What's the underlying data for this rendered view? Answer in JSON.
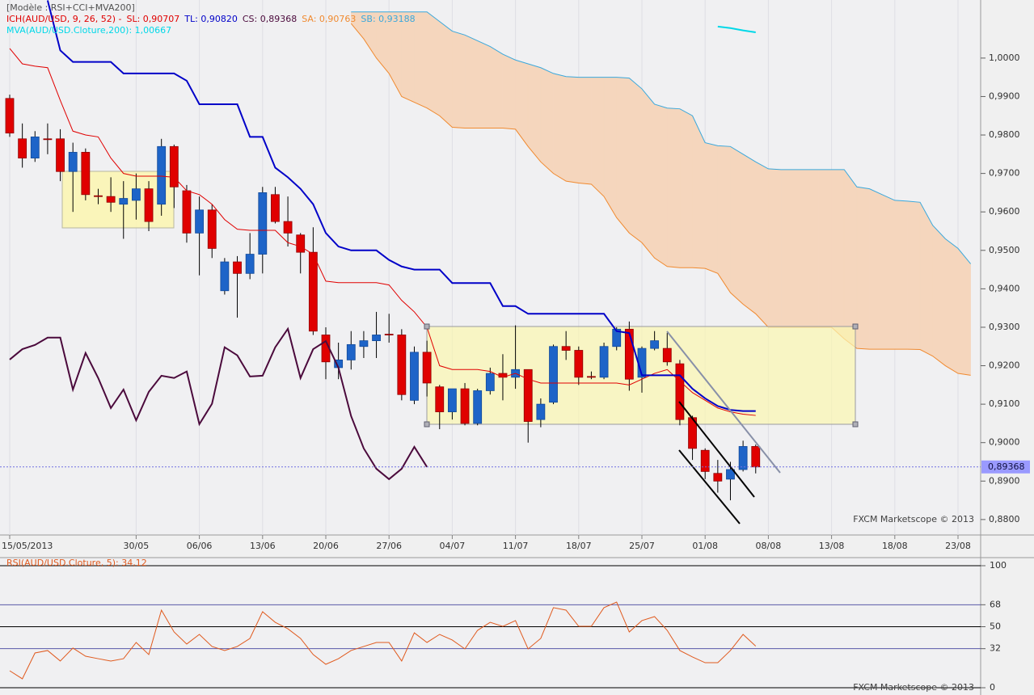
{
  "chart_data": [
    {
      "type": "candlestick",
      "title": "[Modèle : RSI+CCI+MVA200]",
      "subtitle": "ICH(AUD/USD, 9, 26, 52) -",
      "watermark": "FXCM Marketscope © 2013",
      "categories": [
        "15/05/2013",
        null,
        null,
        null,
        null,
        null,
        null,
        null,
        null,
        null,
        "30/05",
        null,
        null,
        null,
        null,
        "06/06",
        null,
        null,
        null,
        null,
        "13/06",
        null,
        null,
        null,
        null,
        "20/06",
        null,
        null,
        null,
        null,
        "27/06",
        null,
        null,
        null,
        null,
        "04/07",
        null,
        null,
        null,
        null,
        "11/07",
        null,
        null,
        null,
        null,
        "18/07",
        null,
        null,
        null,
        null,
        "25/07",
        null,
        null,
        null,
        null,
        "01/08",
        null,
        null,
        null,
        null,
        "08/08",
        null,
        null,
        null,
        null,
        "13/08",
        null,
        null,
        null,
        null,
        "18/08",
        null,
        null,
        null,
        null,
        "23/08",
        null
      ],
      "open": [
        0.9895,
        0.979,
        0.974,
        0.979,
        0.979,
        0.9705,
        0.9755,
        0.9642,
        0.964,
        0.962,
        0.963,
        0.966,
        0.962,
        0.977,
        0.9655,
        0.9545,
        0.9605,
        0.9395,
        0.947,
        0.944,
        0.949,
        0.9645,
        0.9575,
        0.954,
        0.9495,
        0.928,
        0.9195,
        0.9215,
        0.925,
        0.9265,
        0.9282,
        0.928,
        0.911,
        0.9235,
        0.9145,
        0.908,
        0.914,
        0.905,
        0.9135,
        0.918,
        0.917,
        0.919,
        0.906,
        0.9105,
        0.925,
        0.924,
        0.9172,
        0.917,
        0.925,
        0.9295,
        0.917,
        0.9245,
        0.9245,
        0.9205,
        0.9065,
        0.898,
        0.892,
        0.8905,
        0.893,
        0.899,
        null,
        null,
        null,
        null,
        null,
        null,
        null,
        null,
        null,
        null,
        null,
        null,
        null,
        null,
        null,
        null,
        null
      ],
      "high": [
        0.9905,
        0.983,
        0.981,
        0.983,
        0.9815,
        0.978,
        0.9765,
        0.966,
        0.969,
        0.968,
        0.97,
        0.968,
        0.979,
        0.9775,
        0.967,
        0.964,
        0.962,
        0.948,
        0.9485,
        0.9545,
        0.9665,
        0.9665,
        0.964,
        0.9545,
        0.956,
        0.93,
        0.926,
        0.929,
        0.929,
        0.934,
        0.9335,
        0.9295,
        0.925,
        0.9265,
        0.915,
        0.914,
        0.9155,
        0.914,
        0.9195,
        0.923,
        0.9305,
        0.919,
        0.9115,
        0.9255,
        0.929,
        0.925,
        0.9185,
        0.926,
        0.93,
        0.9315,
        0.925,
        0.929,
        0.9285,
        0.9215,
        0.907,
        0.8985,
        0.8955,
        0.895,
        0.9005,
        0.8995,
        null,
        null,
        null,
        null,
        null,
        null,
        null,
        null,
        null,
        null,
        null,
        null,
        null,
        null,
        null,
        null,
        null
      ],
      "low": [
        0.9795,
        0.9715,
        0.973,
        0.975,
        0.968,
        0.96,
        0.963,
        0.962,
        0.96,
        0.953,
        0.958,
        0.955,
        0.959,
        0.961,
        0.952,
        0.9435,
        0.948,
        0.9385,
        0.9325,
        0.9425,
        0.944,
        0.957,
        0.951,
        0.944,
        0.928,
        0.9165,
        0.9165,
        0.919,
        0.922,
        0.922,
        0.926,
        0.911,
        0.91,
        0.912,
        0.9035,
        0.906,
        0.9045,
        0.9045,
        0.9125,
        0.911,
        0.914,
        0.9,
        0.904,
        0.91,
        0.9215,
        0.915,
        0.9165,
        0.9165,
        0.924,
        0.9135,
        0.913,
        0.924,
        0.92,
        0.9045,
        0.8955,
        0.8905,
        0.887,
        0.885,
        0.8925,
        0.892,
        null,
        null,
        null,
        null,
        null,
        null,
        null,
        null,
        null,
        null,
        null,
        null,
        null,
        null,
        null,
        null,
        null
      ],
      "close": [
        0.9805,
        0.974,
        0.9795,
        0.9788,
        0.9705,
        0.9755,
        0.9645,
        0.964,
        0.9625,
        0.9635,
        0.966,
        0.9575,
        0.977,
        0.9665,
        0.9545,
        0.9605,
        0.9505,
        0.947,
        0.944,
        0.949,
        0.965,
        0.9575,
        0.9545,
        0.9495,
        0.929,
        0.921,
        0.9215,
        0.9255,
        0.9265,
        0.928,
        0.928,
        0.9125,
        0.9235,
        0.9155,
        0.908,
        0.914,
        0.905,
        0.9135,
        0.918,
        0.917,
        0.919,
        0.9055,
        0.91,
        0.925,
        0.924,
        0.917,
        0.917,
        0.925,
        0.9295,
        0.9165,
        0.9245,
        0.9265,
        0.921,
        0.906,
        0.8985,
        0.8925,
        0.89,
        0.893,
        0.899,
        0.89368,
        null,
        null,
        null,
        null,
        null,
        null,
        null,
        null,
        null,
        null,
        null,
        null,
        null,
        null,
        null,
        null,
        null
      ],
      "up_color": "#1e64c8",
      "down_color": "#e00000",
      "series": [
        {
          "name": "SL: 0,90707",
          "color": "#e00000",
          "values": [
            1.0025,
            0.9985,
            0.9979,
            0.9975,
            0.989,
            0.981,
            0.98,
            0.9795,
            0.974,
            0.97,
            0.9693,
            0.9693,
            0.9693,
            0.969,
            0.9655,
            0.9645,
            0.962,
            0.958,
            0.9555,
            0.9552,
            0.9552,
            0.9552,
            0.952,
            0.951,
            0.949,
            0.942,
            0.9416,
            0.9416,
            0.9416,
            0.9416,
            0.941,
            0.937,
            0.934,
            0.93,
            0.92,
            0.919,
            0.919,
            0.919,
            0.9185,
            0.917,
            0.918,
            0.9165,
            0.9155,
            0.9155,
            0.9155,
            0.9155,
            0.9155,
            0.9155,
            0.9155,
            0.915,
            0.9165,
            0.918,
            0.919,
            0.916,
            0.913,
            0.911,
            0.909,
            0.908,
            0.9074,
            0.90707,
            null,
            null,
            null,
            null,
            null,
            null,
            null,
            null,
            null,
            null,
            null,
            null,
            null,
            null,
            null,
            null,
            null
          ]
        },
        {
          "name": "TL: 0,90820",
          "color": "#0000c8",
          "values": [
            null,
            null,
            null,
            1.015,
            1.002,
            0.999,
            0.999,
            0.999,
            0.999,
            0.996,
            0.996,
            0.996,
            0.996,
            0.996,
            0.9941,
            0.988,
            0.988,
            0.988,
            0.988,
            0.9795,
            0.9795,
            0.9715,
            0.969,
            0.966,
            0.962,
            0.9545,
            0.951,
            0.95,
            0.95,
            0.95,
            0.9475,
            0.9458,
            0.945,
            0.945,
            0.945,
            0.9415,
            0.9415,
            0.9415,
            0.9415,
            0.9355,
            0.9355,
            0.9335,
            0.9335,
            0.9335,
            0.9335,
            0.9335,
            0.9335,
            0.9335,
            0.929,
            0.9285,
            0.9175,
            0.9175,
            0.9175,
            0.9175,
            0.914,
            0.9115,
            0.9095,
            0.9085,
            0.9082,
            0.9082,
            null,
            null,
            null,
            null,
            null,
            null,
            null,
            null,
            null,
            null,
            null,
            null,
            null,
            null,
            null,
            null,
            null
          ]
        },
        {
          "name": "CS: 0,89368",
          "color": "#4b0a3c",
          "values": [
            0.9216,
            0.9243,
            0.9254,
            0.9273,
            0.9273,
            0.9138,
            0.9233,
            0.9168,
            0.909,
            0.9138,
            0.9058,
            0.9132,
            0.9174,
            0.9168,
            0.9185,
            0.9048,
            0.9101,
            0.9248,
            0.9227,
            0.9172,
            0.9174,
            0.9248,
            0.9296,
            0.9168,
            0.9243,
            0.9264,
            0.9195,
            0.9069,
            0.8985,
            0.8932,
            0.8905,
            0.8932,
            0.8989,
            0.89368,
            null,
            null,
            null,
            null,
            null,
            null,
            null,
            null,
            null,
            null,
            null,
            null,
            null,
            null,
            null,
            null,
            null,
            null,
            null,
            null,
            null,
            null,
            null,
            null,
            null,
            null,
            null,
            null,
            null,
            null,
            null,
            null,
            null,
            null,
            null,
            null,
            null,
            null,
            null,
            null,
            null,
            null,
            null
          ]
        },
        {
          "name": "SA: 0,90763",
          "color": "#f08a30",
          "values": [
            null,
            null,
            null,
            null,
            null,
            null,
            null,
            null,
            null,
            null,
            null,
            null,
            null,
            null,
            null,
            null,
            null,
            null,
            null,
            null,
            null,
            null,
            null,
            null,
            null,
            null,
            null,
            1.009,
            1.005,
            1.0,
            0.996,
            0.99,
            0.9885,
            0.987,
            0.985,
            0.982,
            0.9818,
            0.9818,
            0.9818,
            0.9818,
            0.9815,
            0.977,
            0.973,
            0.97,
            0.968,
            0.9675,
            0.9672,
            0.964,
            0.9585,
            0.9545,
            0.952,
            0.948,
            0.9458,
            0.9455,
            0.9455,
            0.9453,
            0.944,
            0.939,
            0.936,
            0.9335,
            0.93,
            0.93,
            0.93,
            0.93,
            0.93,
            0.93,
            0.927,
            0.9245,
            0.9243,
            0.9243,
            0.9243,
            0.9243,
            0.9242,
            0.9225,
            0.92,
            0.918,
            0.9175
          ]
        },
        {
          "name": "SB: 0,93188",
          "color": "#3aa8dc",
          "values": [
            null,
            null,
            null,
            null,
            null,
            null,
            null,
            null,
            null,
            null,
            null,
            null,
            null,
            null,
            null,
            null,
            null,
            null,
            null,
            null,
            null,
            null,
            null,
            null,
            null,
            null,
            null,
            1.012,
            1.012,
            1.012,
            1.012,
            1.012,
            1.012,
            1.012,
            1.0095,
            1.007,
            1.006,
            1.0045,
            1.003,
            1.001,
            0.9995,
            0.9985,
            0.9975,
            0.996,
            0.9952,
            0.995,
            0.995,
            0.995,
            0.995,
            0.9948,
            0.992,
            0.988,
            0.987,
            0.9868,
            0.985,
            0.978,
            0.9772,
            0.977,
            0.975,
            0.973,
            0.9712,
            0.971,
            0.971,
            0.971,
            0.971,
            0.971,
            0.971,
            0.9665,
            0.966,
            0.9645,
            0.963,
            0.9628,
            0.9625,
            0.9565,
            0.953,
            0.9505,
            0.9465
          ]
        }
      ],
      "cloud_color": "#f5d6bd",
      "moving_average": {
        "name": "MVA(AUD/USD.Cloture,200): 1,00667",
        "color": "#00d8e8",
        "values": [
          null,
          null,
          null,
          null,
          null,
          null,
          null,
          null,
          null,
          null,
          null,
          null,
          null,
          null,
          null,
          null,
          null,
          null,
          null,
          null,
          null,
          null,
          null,
          null,
          null,
          null,
          null,
          null,
          null,
          null,
          null,
          null,
          null,
          null,
          null,
          null,
          null,
          null,
          null,
          null,
          null,
          null,
          null,
          null,
          null,
          null,
          null,
          null,
          null,
          null,
          null,
          null,
          null,
          null,
          null,
          null,
          1.0082,
          1.0078,
          1.0072,
          1.0067,
          null,
          null,
          null,
          null,
          null,
          null,
          null,
          null,
          null,
          null,
          null,
          null,
          null,
          null,
          null,
          null,
          null
        ]
      },
      "price_line": {
        "value": 0.89368,
        "label": "0,89368"
      },
      "ylim": [
        0.8764,
        1.0109
      ],
      "yticks": [
        {
          "value": 0.88,
          "label": "0,8800"
        },
        {
          "value": 0.89,
          "label": "0,8900"
        },
        {
          "value": 0.9,
          "label": "0,9000"
        },
        {
          "value": 0.91,
          "label": "0,9100"
        },
        {
          "value": 0.92,
          "label": "0,9200"
        },
        {
          "value": 0.93,
          "label": "0,9300"
        },
        {
          "value": 0.94,
          "label": "0,9400"
        },
        {
          "value": 0.95,
          "label": "0,9500"
        },
        {
          "value": 0.96,
          "label": "0,9600"
        },
        {
          "value": 0.97,
          "label": "0,9700"
        },
        {
          "value": 0.98,
          "label": "0,9800"
        },
        {
          "value": 0.99,
          "label": "0,9900"
        },
        {
          "value": 1.0,
          "label": "1,0000"
        }
      ]
    },
    {
      "type": "line",
      "title": "RSI(AUD/USD.Cloture, 5): 34,12",
      "watermark": "FXCM Marketscope © 2013",
      "color": "#e05a1e",
      "values": [
        13.9,
        7.3,
        28.5,
        30.5,
        21.9,
        32.5,
        25.8,
        23.8,
        21.9,
        23.8,
        37.1,
        27.2,
        63.6,
        45.7,
        35.8,
        43.7,
        33.8,
        30.5,
        33.8,
        40.4,
        62.3,
        53.6,
        48.3,
        40.4,
        27.2,
        19.2,
        23.8,
        30.5,
        33.8,
        37.1,
        37.1,
        21.9,
        45.0,
        37.1,
        43.7,
        39.1,
        31.8,
        47.0,
        53.6,
        50.3,
        55.0,
        31.8,
        40.4,
        65.6,
        63.6,
        50.3,
        50.3,
        65.6,
        70.2,
        45.7,
        55.0,
        58.3,
        47.0,
        30.5,
        25.2,
        20.5,
        20.5,
        30.5,
        43.7,
        34.12
      ],
      "ylim": [
        0,
        100
      ],
      "yticks": [
        0,
        32,
        50,
        68,
        100
      ],
      "level_colors": [
        "#000000",
        "#5858a8",
        "#000000",
        "#5858a8",
        "#000000"
      ]
    }
  ]
}
